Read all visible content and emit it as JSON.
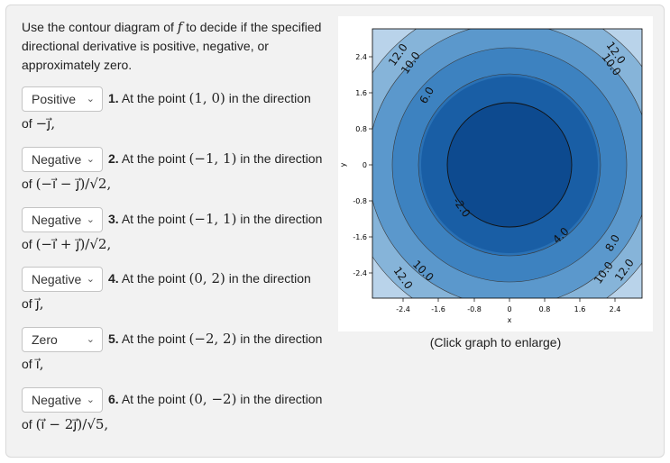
{
  "intro": {
    "part1": "Use the contour diagram of ",
    "fvar": "f",
    "part2": " to decide if the specified directional derivative is positive, negative, or approximately zero."
  },
  "questions": [
    {
      "selected": "Positive",
      "number": "1.",
      "text": "At the point",
      "point": "(1, 0)",
      "mid": "in the direction",
      "ofword": "of",
      "direction": "−j⃗,"
    },
    {
      "selected": "Negative",
      "number": "2.",
      "text": "At the point",
      "point": "(−1, 1)",
      "mid": "in the direction",
      "ofword": "of",
      "direction": "(−i⃗ − j⃗)/√2,"
    },
    {
      "selected": "Negative",
      "number": "3.",
      "text": "At the point",
      "point": "(−1, 1)",
      "mid": "in the direction",
      "ofword": "of",
      "direction": "(−i⃗ + j⃗)/√2,"
    },
    {
      "selected": "Negative",
      "number": "4.",
      "text": "At the point",
      "point": "(0, 2)",
      "mid": "in the direction",
      "ofword": "of",
      "direction": "j⃗,"
    },
    {
      "selected": "Zero",
      "number": "5.",
      "text": "At the point",
      "point": "(−2, 2)",
      "mid": "in the direction",
      "ofword": "of",
      "direction": "i⃗,"
    },
    {
      "selected": "Negative",
      "number": "6.",
      "text": "At the point",
      "point": "(0, −2)",
      "mid": "in the direction",
      "ofword": "of",
      "direction": "(i⃗ − 2j⃗)/√5,"
    }
  ],
  "graph": {
    "caption": "(Click graph to enlarge)",
    "xlabel": "x",
    "ylabel": "y",
    "xticks": [
      "-2.4",
      "-1.6",
      "-0.8",
      "0",
      "0.8",
      "1.6",
      "2.4"
    ],
    "yticks": [
      "2.4",
      "1.6",
      "0.8",
      "0",
      "-0.8",
      "-1.6",
      "-2.4"
    ],
    "contour_labels": [
      "12.0",
      "10.0",
      "6.0",
      "12.0",
      "10.0",
      "-2.0",
      "4.0",
      "8.0",
      "12.0",
      "10.0",
      "10.0",
      "12.0"
    ],
    "colors": {
      "c1": "#0d4a8f",
      "c2": "#195ea5",
      "c3": "#2a71b5",
      "c4": "#3d82c0",
      "c5": "#5b98cc",
      "c6": "#86b4d9",
      "c7": "#b9d3ea"
    }
  }
}
